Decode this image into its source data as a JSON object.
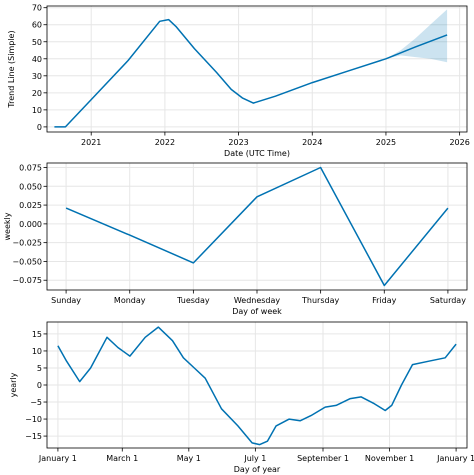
{
  "colors": {
    "line": "#0072B2",
    "band": "#0072B2",
    "grid": "#e6e6e6",
    "axis": "#000000"
  },
  "chart_data": [
    {
      "type": "line",
      "xlabel": "Date (UTC Time)",
      "ylabel": "Trend Line (Simple)",
      "xlim": [
        2020.4,
        2026.1
      ],
      "ylim": [
        -3,
        71
      ],
      "xticks": [
        2021,
        2022,
        2023,
        2024,
        2025,
        2026
      ],
      "xtick_labels": [
        "2021",
        "2022",
        "2023",
        "2024",
        "2025",
        "2026"
      ],
      "yticks": [
        0,
        10,
        20,
        30,
        40,
        50,
        60,
        70
      ],
      "ytick_labels": [
        "0",
        "10",
        "20",
        "30",
        "40",
        "50",
        "60",
        "70"
      ],
      "grid": true,
      "series": [
        {
          "x": [
            2020.5,
            2020.65,
            2021.0,
            2021.5,
            2021.93,
            2022.05,
            2022.15,
            2022.4,
            2022.7,
            2022.9,
            2023.05,
            2023.2,
            2023.5,
            2024.0,
            2024.5,
            2025.0,
            2025.4,
            2025.83
          ],
          "y": [
            0,
            0,
            16,
            39,
            62,
            63,
            59,
            46,
            32,
            22,
            17,
            14,
            18,
            26,
            33,
            40,
            47,
            54
          ]
        }
      ],
      "uncertainty_band": {
        "x": [
          2025.0,
          2025.2,
          2025.4,
          2025.6,
          2025.83
        ],
        "upper": [
          40,
          45,
          52,
          60,
          69
        ],
        "lower": [
          40,
          42,
          41,
          40,
          38
        ]
      }
    },
    {
      "type": "line",
      "xlabel": "Day of week",
      "ylabel": "weekly",
      "categories": [
        "Sunday",
        "Monday",
        "Tuesday",
        "Wednesday",
        "Thursday",
        "Friday",
        "Saturday"
      ],
      "ylim": [
        -0.088,
        0.081
      ],
      "yticks": [
        0.075,
        0.05,
        0.025,
        0.0,
        -0.025,
        -0.05,
        -0.075
      ],
      "ytick_labels": [
        "0.075",
        "0.050",
        "0.025",
        "0.000",
        "−0.025",
        "−0.050",
        "−0.075"
      ],
      "grid": true,
      "series": [
        {
          "values": [
            0.021,
            -0.015,
            -0.052,
            0.036,
            0.075,
            -0.082,
            0.021
          ]
        }
      ]
    },
    {
      "type": "line",
      "xlabel": "Day of year",
      "ylabel": "yearly",
      "xlim": [
        -10,
        375
      ],
      "ylim": [
        -18.5,
        18.5
      ],
      "xticks": [
        0,
        59,
        120,
        181,
        243,
        304,
        365
      ],
      "xtick_labels": [
        "January 1",
        "March 1",
        "May 1",
        "July 1",
        "September 1",
        "November 1",
        "January 1"
      ],
      "yticks": [
        15,
        10,
        5,
        0,
        -5,
        -10,
        -15
      ],
      "ytick_labels": [
        "15",
        "10",
        "5",
        "0",
        "−5",
        "−10",
        "−15"
      ],
      "grid": true,
      "series": [
        {
          "x": [
            0,
            8,
            20,
            30,
            45,
            55,
            66,
            80,
            92,
            105,
            115,
            125,
            135,
            150,
            165,
            178,
            185,
            192,
            200,
            212,
            222,
            232,
            245,
            255,
            268,
            278,
            290,
            300,
            306,
            315,
            325,
            340,
            355,
            365
          ],
          "y": [
            11.5,
            7,
            1,
            5,
            14,
            11,
            8.5,
            14,
            17,
            13,
            8,
            5,
            2,
            -7,
            -12,
            -17,
            -17.5,
            -16.5,
            -12,
            -10,
            -10.5,
            -9,
            -6.5,
            -6,
            -4,
            -3.5,
            -5.5,
            -7.5,
            -6,
            0,
            6,
            7,
            8,
            12
          ]
        }
      ]
    }
  ]
}
